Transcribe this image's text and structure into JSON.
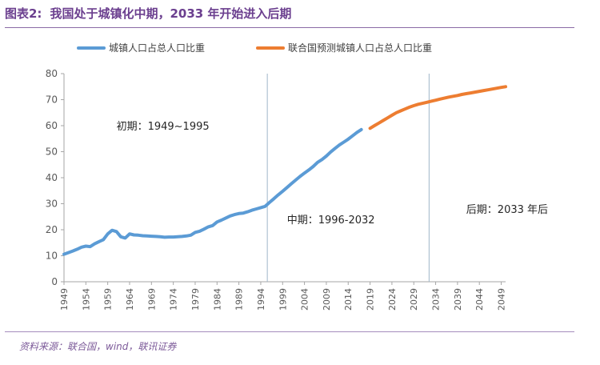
{
  "figure": {
    "label": "图表2:",
    "title": "我国处于城镇化中期，2033 年开始进入后期",
    "source": "资料来源：联合国，wind，联讯证券"
  },
  "chart_data": {
    "type": "line",
    "title": "我国处于城镇化中期，2033 年开始进入后期",
    "xlabel": "",
    "ylabel": "",
    "ylim": [
      0,
      80
    ],
    "yticks": [
      0,
      10,
      20,
      30,
      40,
      50,
      60,
      70,
      80
    ],
    "xlim": [
      1949,
      2050
    ],
    "xticks": [
      "1949",
      "1954",
      "1959",
      "1964",
      "1969",
      "1974",
      "1979",
      "1984",
      "1989",
      "1994",
      "1999",
      "2004",
      "2009",
      "2014",
      "2019",
      "2024",
      "2029",
      "2034",
      "2039",
      "2044",
      "2049"
    ],
    "grid": false,
    "legend_position": "top",
    "colors": {
      "urban": "#5b9bd5",
      "forecast": "#ed7d31",
      "divider": "#9fb6c9",
      "axis": "#a6a6a6"
    },
    "series": [
      {
        "name": "城镇人口占总人口比重",
        "x": [
          1949,
          1950,
          1951,
          1952,
          1953,
          1954,
          1955,
          1956,
          1957,
          1958,
          1959,
          1960,
          1961,
          1962,
          1963,
          1964,
          1965,
          1966,
          1967,
          1968,
          1969,
          1970,
          1971,
          1972,
          1973,
          1974,
          1975,
          1976,
          1977,
          1978,
          1979,
          1980,
          1981,
          1982,
          1983,
          1984,
          1985,
          1986,
          1987,
          1988,
          1989,
          1990,
          1991,
          1992,
          1993,
          1994,
          1995,
          1996,
          1997,
          1998,
          1999,
          2000,
          2001,
          2002,
          2003,
          2004,
          2005,
          2006,
          2007,
          2008,
          2009,
          2010,
          2011,
          2012,
          2013,
          2014,
          2015,
          2016,
          2017
        ],
        "values": [
          10.6,
          11.2,
          11.8,
          12.5,
          13.3,
          13.7,
          13.5,
          14.6,
          15.4,
          16.2,
          18.4,
          19.8,
          19.3,
          17.3,
          16.8,
          18.4,
          18.0,
          17.9,
          17.7,
          17.6,
          17.5,
          17.4,
          17.3,
          17.1,
          17.2,
          17.2,
          17.3,
          17.4,
          17.6,
          17.9,
          19.0,
          19.4,
          20.2,
          21.1,
          21.6,
          23.0,
          23.7,
          24.5,
          25.3,
          25.8,
          26.2,
          26.4,
          26.9,
          27.5,
          28.0,
          28.5,
          29.0,
          30.5,
          31.9,
          33.4,
          34.8,
          36.2,
          37.7,
          39.1,
          40.5,
          41.8,
          43.0,
          44.3,
          45.9,
          47.0,
          48.3,
          49.9,
          51.3,
          52.6,
          53.7,
          54.8,
          56.1,
          57.4,
          58.5
        ]
      },
      {
        "name": "联合国预测城镇人口占总人口比重",
        "x": [
          2019,
          2020,
          2021,
          2022,
          2023,
          2024,
          2025,
          2026,
          2027,
          2028,
          2029,
          2030,
          2031,
          2032,
          2033,
          2034,
          2035,
          2036,
          2037,
          2038,
          2039,
          2040,
          2041,
          2042,
          2043,
          2044,
          2045,
          2046,
          2047,
          2048,
          2049,
          2050
        ],
        "values": [
          59.0,
          60.0,
          61.0,
          62.0,
          63.0,
          64.0,
          65.0,
          65.7,
          66.4,
          67.1,
          67.7,
          68.2,
          68.6,
          69.0,
          69.4,
          69.8,
          70.2,
          70.6,
          71.0,
          71.3,
          71.6,
          72.0,
          72.3,
          72.6,
          72.9,
          73.2,
          73.5,
          73.8,
          74.1,
          74.4,
          74.7,
          75.0
        ]
      }
    ],
    "dividers": [
      1995.5,
      2032.5
    ],
    "annotations": [
      {
        "text": "初期：1949~1995",
        "x": 1961,
        "y": 58.5
      },
      {
        "text": "中期：1996-2032",
        "x": 2000,
        "y": 22.5
      },
      {
        "text": "后期：2033 年后",
        "x": 2041,
        "y": 26.5
      }
    ]
  }
}
